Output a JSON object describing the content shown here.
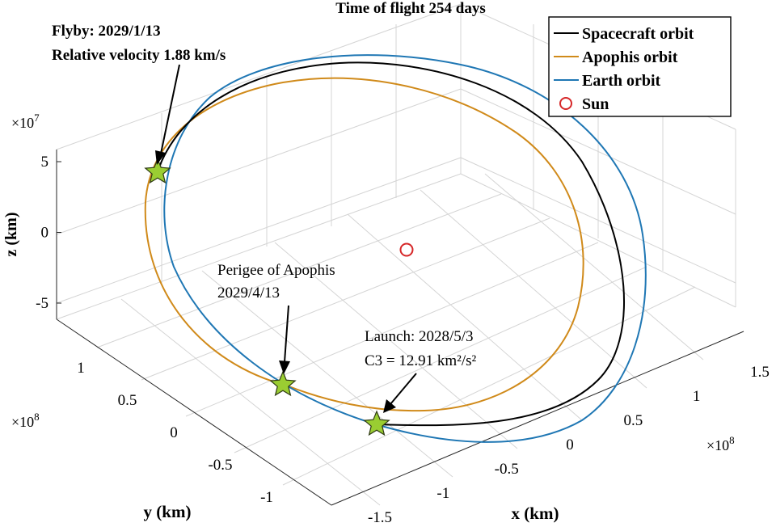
{
  "chart_data": {
    "type": "line",
    "title": "Time of flight 254 days",
    "xlabel": "x (km)",
    "ylabel": "y (km)",
    "zlabel": "z (km)",
    "x_ticks": [
      "-1.5",
      "-1",
      "-0.5",
      "0",
      "0.5",
      "1",
      "1.5"
    ],
    "y_ticks": [
      "-1",
      "-0.5",
      "0",
      "0.5",
      "1"
    ],
    "z_ticks": [
      "-5",
      "0",
      "5"
    ],
    "x_exponent": "×10",
    "x_exponent_power": "8",
    "y_exponent": "×10",
    "y_exponent_power": "8",
    "z_exponent": "×10",
    "z_exponent_power": "7",
    "xlim": [
      -1.5,
      1.5
    ],
    "ylim": [
      -1.2,
      1.2
    ],
    "zlim": [
      -6,
      6
    ],
    "grid": true,
    "legend_position": "top-right",
    "legend": [
      {
        "label": "Spacecraft orbit",
        "color": "#000000",
        "marker": "line"
      },
      {
        "label": "Apophis orbit",
        "color": "#d08a1a",
        "marker": "line"
      },
      {
        "label": "Earth orbit",
        "color": "#1f77b4",
        "marker": "line"
      },
      {
        "label": "Sun",
        "color": "#d62728",
        "marker": "circle"
      }
    ],
    "series": [
      {
        "name": "Spacecraft orbit",
        "color": "#000000"
      },
      {
        "name": "Apophis orbit",
        "color": "#d08a1a"
      },
      {
        "name": "Earth orbit",
        "color": "#1f77b4"
      }
    ],
    "annotations": [
      {
        "lines": [
          "Flyby: 2029/1/13",
          "Relative velocity 1.88 km/s"
        ]
      },
      {
        "lines": [
          "Perigee of Apophis",
          "2029/4/13"
        ]
      },
      {
        "lines": [
          "Launch: 2028/5/3",
          "C3 = 12.91 km²/s²"
        ]
      }
    ],
    "event_marker_color": "#9acd32"
  }
}
